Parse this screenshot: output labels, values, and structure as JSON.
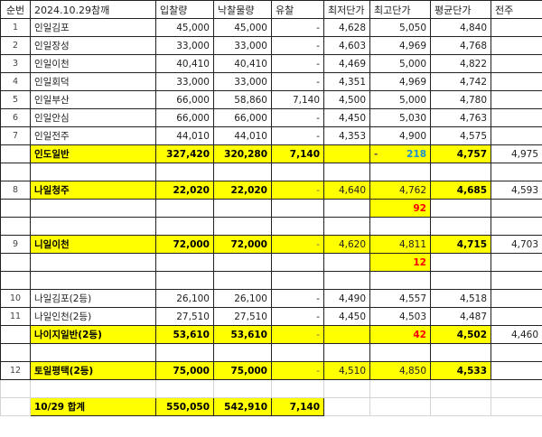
{
  "colors": {
    "highlight": "#ffff00",
    "negative_delta": "#ff0000",
    "positive_delta": "#1f8fd0"
  },
  "headers": [
    "순번",
    "2024.10.29참깨",
    "입찰량",
    "낙찰물량",
    "유찰",
    "최저단가",
    "최고단가",
    "평균단가",
    "전주"
  ],
  "rows": [
    {
      "cells": [
        "1",
        "인일김포",
        "45,000",
        "45,000",
        "-",
        "4,628",
        "5,050",
        "4,840",
        ""
      ]
    },
    {
      "cells": [
        "2",
        "인일장성",
        "33,000",
        "33,000",
        "-",
        "4,603",
        "4,969",
        "4,768",
        ""
      ]
    },
    {
      "cells": [
        "3",
        "인일이천",
        "40,410",
        "40,410",
        "-",
        "4,469",
        "5,000",
        "4,822",
        ""
      ]
    },
    {
      "cells": [
        "4",
        "인일회덕",
        "33,000",
        "33,000",
        "-",
        "4,351",
        "4,969",
        "4,742",
        ""
      ]
    },
    {
      "cells": [
        "5",
        "인일부산",
        "66,000",
        "58,860",
        "7,140",
        "4,500",
        "5,000",
        "4,780",
        ""
      ]
    },
    {
      "cells": [
        "6",
        "인일안심",
        "66,000",
        "66,000",
        "-",
        "4,450",
        "5,030",
        "4,763",
        ""
      ]
    },
    {
      "cells": [
        "7",
        "인일전주",
        "44,010",
        "44,010",
        "-",
        "4,353",
        "4,900",
        "4,575",
        ""
      ]
    },
    {
      "type": "subtotal",
      "cells": [
        "",
        "인도일반",
        "327,420",
        "320,280",
        "7,140",
        "",
        "218",
        "4,757",
        "4,975"
      ],
      "delta_dash": "-",
      "delta_color": "blue"
    },
    {
      "cells": [
        "",
        "",
        "",
        "",
        "",
        "",
        "",
        "",
        ""
      ]
    },
    {
      "type": "group",
      "cells": [
        "8",
        "나일청주",
        "22,020",
        "22,020",
        "-",
        "4,640",
        "4,762",
        "4,685",
        "4,593"
      ]
    },
    {
      "type": "delta",
      "cells": [
        "",
        "",
        "",
        "",
        "",
        "",
        "92",
        "",
        ""
      ]
    },
    {
      "cells": [
        "",
        "",
        "",
        "",
        "",
        "",
        "",
        "",
        ""
      ]
    },
    {
      "type": "group",
      "cells": [
        "9",
        "니일이천",
        "72,000",
        "72,000",
        "-",
        "4,620",
        "4,811",
        "4,715",
        "4,703"
      ]
    },
    {
      "type": "delta",
      "cells": [
        "",
        "",
        "",
        "",
        "",
        "",
        "12",
        "",
        ""
      ]
    },
    {
      "cells": [
        "",
        "",
        "",
        "",
        "",
        "",
        "",
        "",
        ""
      ]
    },
    {
      "cells": [
        "10",
        "나일김포(2등)",
        "26,100",
        "26,100",
        "-",
        "4,490",
        "4,557",
        "4,518",
        ""
      ]
    },
    {
      "cells": [
        "11",
        "나일인천(2등)",
        "27,510",
        "27,510",
        "-",
        "4,450",
        "4,503",
        "4,487",
        ""
      ]
    },
    {
      "type": "subtotal",
      "cells": [
        "",
        "나이지일반(2등)",
        "53,610",
        "53,610",
        "-",
        "",
        "42",
        "4,502",
        "4,460"
      ],
      "delta_color": "red"
    },
    {
      "cells": [
        "",
        "",
        "",
        "",
        "",
        "",
        "",
        "",
        ""
      ]
    },
    {
      "type": "group",
      "cells": [
        "12",
        "토일평택(2등)",
        "75,000",
        "75,000",
        "-",
        "4,510",
        "4,850",
        "4,533",
        ""
      ]
    },
    {
      "type": "blank-light",
      "cells": [
        "",
        "",
        "",
        "",
        "",
        "",
        "",
        "",
        ""
      ]
    },
    {
      "type": "total",
      "cells": [
        "",
        "10/29 합계",
        "550,050",
        "542,910",
        "7,140",
        "",
        "",
        "",
        ""
      ]
    }
  ]
}
